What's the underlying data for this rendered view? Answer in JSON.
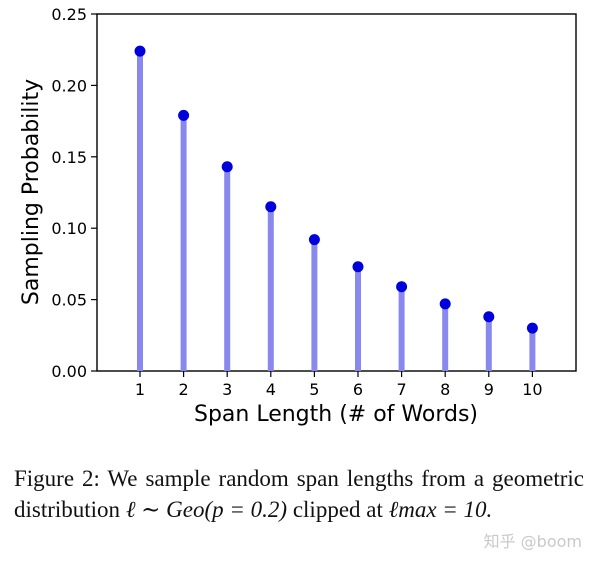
{
  "chart_data": {
    "type": "bar",
    "style": "stem",
    "categories": [
      "1",
      "2",
      "3",
      "4",
      "5",
      "6",
      "7",
      "8",
      "9",
      "10"
    ],
    "values": [
      0.224,
      0.179,
      0.143,
      0.115,
      0.092,
      0.073,
      0.059,
      0.047,
      0.038,
      0.03
    ],
    "xlabel": "Span Length (# of Words)",
    "ylabel": "Sampling Probability",
    "ylim": [
      0.0,
      0.25
    ],
    "yticks": [
      "0.00",
      "0.05",
      "0.10",
      "0.15",
      "0.20",
      "0.25"
    ],
    "grid": false,
    "legend": "none",
    "stem_color": "#8888ee",
    "marker_color": "#0000dd"
  },
  "caption": {
    "prefix": "Figure 2: We sample random span lengths from a geometric distribution",
    "formula": "ℓ ∼ Geo(p = 0.2)",
    "middle": "clipped at",
    "limit": "ℓmax = 10."
  },
  "watermark": "知乎 @boom"
}
